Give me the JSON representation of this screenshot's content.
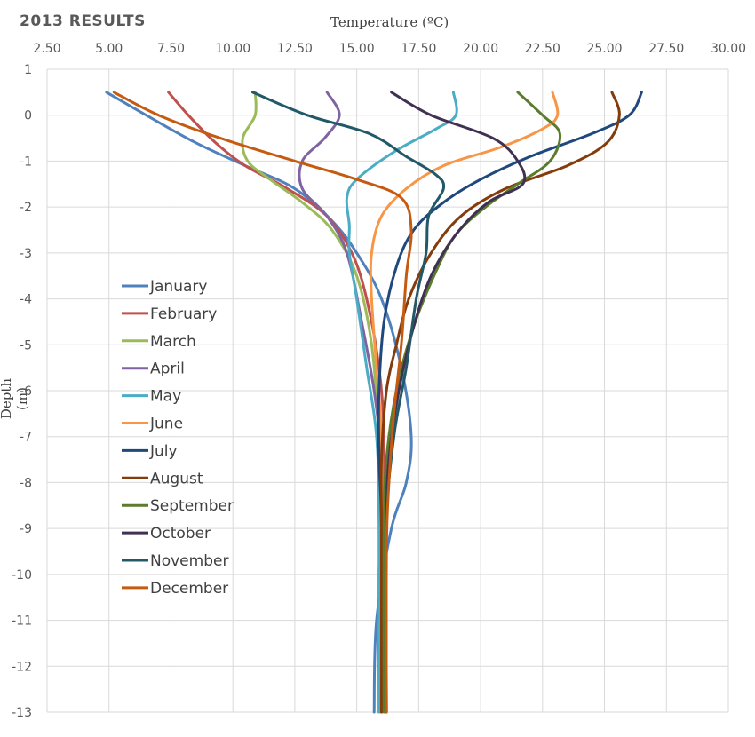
{
  "chart_data": {
    "type": "line",
    "title": "2013 RESULTS",
    "xlabel": "Temperature (ºC)",
    "ylabel": "Depth (m)",
    "x_ticks": [
      "2.50",
      "5.00",
      "7.50",
      "10.00",
      "12.50",
      "15.00",
      "17.50",
      "20.00",
      "22.50",
      "25.00",
      "27.50",
      "30.00"
    ],
    "y_ticks": [
      "1",
      "0",
      "-1",
      "-2",
      "-3",
      "-4",
      "-5",
      "-6",
      "-7",
      "-8",
      "-9",
      "-10",
      "-11",
      "-12",
      "-13"
    ],
    "xlim": [
      2.5,
      30
    ],
    "ylim": [
      -13,
      1
    ],
    "grid": true,
    "legend_position": "left",
    "series": [
      {
        "name": "January",
        "color": "#4f81bd",
        "points": [
          [
            4.9,
            0.5
          ],
          [
            6.5,
            0
          ],
          [
            8.5,
            -0.6
          ],
          [
            10.5,
            -1.1
          ],
          [
            12.5,
            -1.6
          ],
          [
            14.0,
            -2.3
          ],
          [
            15.0,
            -3.0
          ],
          [
            16.0,
            -4.0
          ],
          [
            16.8,
            -5.5
          ],
          [
            17.2,
            -7.0
          ],
          [
            17.0,
            -8.0
          ],
          [
            16.4,
            -9.0
          ],
          [
            15.8,
            -11.0
          ],
          [
            15.7,
            -13.0
          ]
        ]
      },
      {
        "name": "February",
        "color": "#c0504d",
        "points": [
          [
            7.4,
            0.5
          ],
          [
            8.2,
            0
          ],
          [
            9.3,
            -0.6
          ],
          [
            10.5,
            -1.1
          ],
          [
            12.2,
            -1.6
          ],
          [
            13.8,
            -2.2
          ],
          [
            14.8,
            -3.0
          ],
          [
            15.4,
            -4.0
          ],
          [
            15.9,
            -5.5
          ],
          [
            16.1,
            -7.0
          ],
          [
            16.0,
            -8.5
          ],
          [
            15.9,
            -10.0
          ],
          [
            15.9,
            -13.0
          ]
        ]
      },
      {
        "name": "March",
        "color": "#9bbb59",
        "points": [
          [
            10.9,
            0.5
          ],
          [
            10.9,
            0
          ],
          [
            10.4,
            -0.5
          ],
          [
            10.6,
            -1.0
          ],
          [
            11.5,
            -1.4
          ],
          [
            12.8,
            -1.9
          ],
          [
            14.0,
            -2.5
          ],
          [
            15.0,
            -3.5
          ],
          [
            15.6,
            -5.0
          ],
          [
            15.9,
            -7.0
          ],
          [
            16.0,
            -8.5
          ],
          [
            16.0,
            -10.0
          ],
          [
            16.0,
            -13.0
          ]
        ]
      },
      {
        "name": "April",
        "color": "#8064a2",
        "points": [
          [
            13.8,
            0.5
          ],
          [
            14.3,
            0
          ],
          [
            13.7,
            -0.5
          ],
          [
            12.8,
            -1.0
          ],
          [
            12.8,
            -1.6
          ],
          [
            13.8,
            -2.2
          ],
          [
            14.6,
            -3.0
          ],
          [
            15.2,
            -4.5
          ],
          [
            15.7,
            -6.0
          ],
          [
            16.0,
            -7.5
          ],
          [
            16.0,
            -9.0
          ],
          [
            16.0,
            -13.0
          ]
        ]
      },
      {
        "name": "May",
        "color": "#4bacc6",
        "points": [
          [
            18.9,
            0.5
          ],
          [
            19.0,
            0
          ],
          [
            18.2,
            -0.3
          ],
          [
            16.5,
            -0.8
          ],
          [
            15.0,
            -1.4
          ],
          [
            14.6,
            -1.8
          ],
          [
            14.7,
            -2.4
          ],
          [
            14.7,
            -3.0
          ],
          [
            15.0,
            -4.0
          ],
          [
            15.4,
            -5.5
          ],
          [
            15.8,
            -7.0
          ],
          [
            15.9,
            -9.0
          ],
          [
            15.9,
            -13.0
          ]
        ]
      },
      {
        "name": "June",
        "color": "#f79646",
        "points": [
          [
            22.9,
            0.5
          ],
          [
            23.1,
            0
          ],
          [
            22.5,
            -0.3
          ],
          [
            20.8,
            -0.7
          ],
          [
            18.5,
            -1.1
          ],
          [
            17.0,
            -1.6
          ],
          [
            16.0,
            -2.2
          ],
          [
            15.6,
            -3.0
          ],
          [
            15.6,
            -4.0
          ],
          [
            15.8,
            -5.5
          ],
          [
            16.0,
            -7.0
          ],
          [
            16.0,
            -9.0
          ],
          [
            16.0,
            -13.0
          ]
        ]
      },
      {
        "name": "July",
        "color": "#1f497d",
        "points": [
          [
            26.5,
            0.5
          ],
          [
            26.0,
            0
          ],
          [
            24.5,
            -0.4
          ],
          [
            22.0,
            -0.9
          ],
          [
            20.0,
            -1.4
          ],
          [
            18.5,
            -1.9
          ],
          [
            17.3,
            -2.5
          ],
          [
            16.6,
            -3.3
          ],
          [
            16.1,
            -4.5
          ],
          [
            15.9,
            -6.0
          ],
          [
            15.9,
            -7.5
          ],
          [
            16.0,
            -9.0
          ],
          [
            16.0,
            -13.0
          ]
        ]
      },
      {
        "name": "August",
        "color": "#843c0c",
        "points": [
          [
            25.3,
            0.5
          ],
          [
            25.6,
            0
          ],
          [
            25.1,
            -0.6
          ],
          [
            23.5,
            -1.1
          ],
          [
            21.0,
            -1.6
          ],
          [
            19.2,
            -2.2
          ],
          [
            18.0,
            -3.0
          ],
          [
            17.1,
            -4.0
          ],
          [
            16.6,
            -5.0
          ],
          [
            16.2,
            -6.0
          ],
          [
            16.0,
            -7.5
          ],
          [
            16.0,
            -9.0
          ],
          [
            16.0,
            -13.0
          ]
        ]
      },
      {
        "name": "September",
        "color": "#5b7b2d",
        "points": [
          [
            21.5,
            0.5
          ],
          [
            22.5,
            0
          ],
          [
            23.2,
            -0.4
          ],
          [
            22.8,
            -1.0
          ],
          [
            21.5,
            -1.5
          ],
          [
            20.2,
            -2.0
          ],
          [
            19.0,
            -2.6
          ],
          [
            18.2,
            -3.4
          ],
          [
            17.3,
            -4.6
          ],
          [
            16.6,
            -6.0
          ],
          [
            16.2,
            -7.5
          ],
          [
            16.1,
            -9.0
          ],
          [
            16.1,
            -13.0
          ]
        ]
      },
      {
        "name": "October",
        "color": "#403152",
        "points": [
          [
            16.4,
            0.5
          ],
          [
            18.0,
            0
          ],
          [
            20.5,
            -0.5
          ],
          [
            21.5,
            -1.0
          ],
          [
            21.7,
            -1.5
          ],
          [
            20.3,
            -1.9
          ],
          [
            19.0,
            -2.6
          ],
          [
            18.0,
            -3.5
          ],
          [
            17.3,
            -4.6
          ],
          [
            16.7,
            -6.0
          ],
          [
            16.3,
            -7.5
          ],
          [
            16.2,
            -9.0
          ],
          [
            16.2,
            -13.0
          ]
        ]
      },
      {
        "name": "November",
        "color": "#215968",
        "points": [
          [
            10.8,
            0.5
          ],
          [
            13.0,
            0
          ],
          [
            15.5,
            -0.4
          ],
          [
            17.0,
            -0.9
          ],
          [
            18.2,
            -1.3
          ],
          [
            18.5,
            -1.6
          ],
          [
            17.9,
            -2.2
          ],
          [
            17.8,
            -3.0
          ],
          [
            17.4,
            -4.0
          ],
          [
            17.0,
            -5.5
          ],
          [
            16.5,
            -7.0
          ],
          [
            16.2,
            -9.0
          ],
          [
            16.2,
            -13.0
          ]
        ]
      },
      {
        "name": "December",
        "color": "#c55a11",
        "points": [
          [
            5.2,
            0.5
          ],
          [
            7.0,
            0
          ],
          [
            9.5,
            -0.5
          ],
          [
            12.5,
            -1.0
          ],
          [
            15.0,
            -1.4
          ],
          [
            16.8,
            -1.8
          ],
          [
            17.2,
            -2.5
          ],
          [
            17.0,
            -3.5
          ],
          [
            16.8,
            -5.0
          ],
          [
            16.5,
            -6.5
          ],
          [
            16.3,
            -8.0
          ],
          [
            16.2,
            -9.5
          ],
          [
            16.2,
            -13.0
          ]
        ]
      }
    ]
  }
}
